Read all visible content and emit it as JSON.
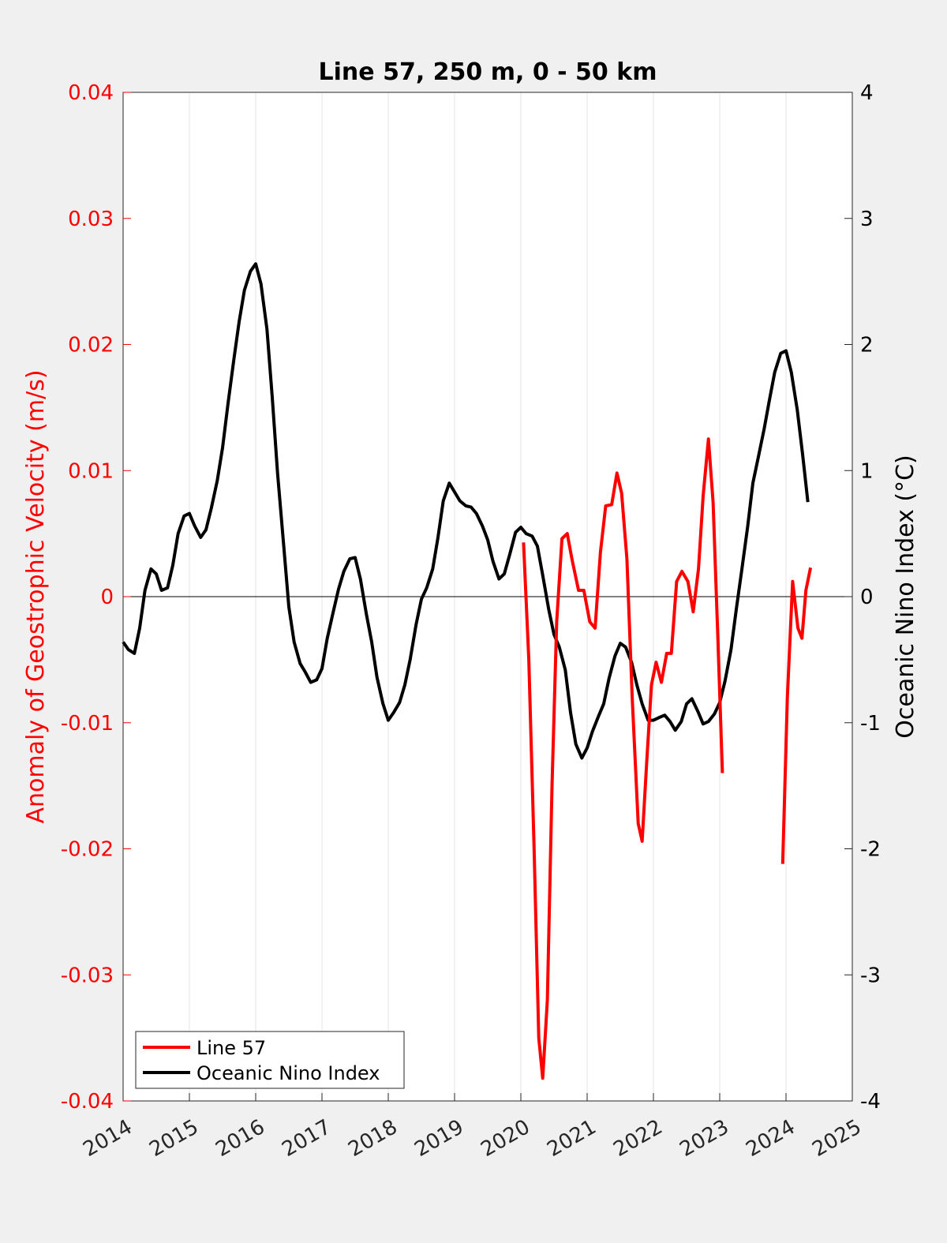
{
  "chart_data": {
    "type": "line",
    "title": "Line 57, 250 m, 0 - 50 km",
    "xlim": [
      2014,
      2025
    ],
    "x_ticks": [
      "2014",
      "2015",
      "2016",
      "2017",
      "2018",
      "2019",
      "2020",
      "2021",
      "2022",
      "2023",
      "2024",
      "2025"
    ],
    "left_axis": {
      "label": "Anomaly of Geostrophic Velocity (m/s)",
      "ylim": [
        -0.04,
        0.04
      ],
      "ticks": [
        "-0.04",
        "-0.03",
        "-0.02",
        "-0.01",
        "0",
        "0.01",
        "0.02",
        "0.03",
        "0.04"
      ],
      "color": "#ff0000"
    },
    "right_axis": {
      "label": "Oceanic Nino Index (°C)",
      "ylim": [
        -4,
        4
      ],
      "ticks": [
        "-4",
        "-3",
        "-2",
        "-1",
        "0",
        "1",
        "2",
        "3",
        "4"
      ],
      "color": "#000000"
    },
    "grid": "vertical",
    "zero_line": true,
    "legend_position": "bottom-left",
    "series": [
      {
        "name": "Line 57",
        "axis": "left",
        "color": "#ff0000",
        "segments": [
          [
            [
              2020.04,
              0.0043
            ],
            [
              2020.12,
              -0.005
            ],
            [
              2020.2,
              -0.02
            ],
            [
              2020.27,
              -0.035
            ],
            [
              2020.33,
              -0.0382
            ],
            [
              2020.4,
              -0.032
            ],
            [
              2020.47,
              -0.015
            ],
            [
              2020.54,
              -0.002
            ],
            [
              2020.62,
              0.0046
            ],
            [
              2020.7,
              0.005
            ],
            [
              2020.77,
              0.003
            ],
            [
              2020.87,
              0.0005
            ],
            [
              2020.95,
              0.0005
            ],
            [
              2021.04,
              -0.002
            ],
            [
              2021.12,
              -0.0025
            ],
            [
              2021.2,
              0.0035
            ],
            [
              2021.28,
              0.0072
            ],
            [
              2021.37,
              0.0073
            ],
            [
              2021.45,
              0.0098
            ],
            [
              2021.52,
              0.0082
            ],
            [
              2021.6,
              0.003
            ],
            [
              2021.68,
              -0.008
            ],
            [
              2021.77,
              -0.018
            ],
            [
              2021.83,
              -0.0194
            ],
            [
              2021.9,
              -0.013
            ],
            [
              2021.97,
              -0.007
            ],
            [
              2022.04,
              -0.0052
            ],
            [
              2022.12,
              -0.0068
            ],
            [
              2022.2,
              -0.0045
            ],
            [
              2022.27,
              -0.0045
            ],
            [
              2022.35,
              0.0012
            ],
            [
              2022.43,
              0.002
            ],
            [
              2022.52,
              0.0012
            ],
            [
              2022.6,
              -0.0012
            ],
            [
              2022.68,
              0.0022
            ],
            [
              2022.75,
              0.008
            ],
            [
              2022.83,
              0.0125
            ],
            [
              2022.9,
              0.0075
            ],
            [
              2022.97,
              -0.003
            ],
            [
              2023.04,
              -0.014
            ]
          ],
          [
            [
              2023.95,
              -0.0212
            ],
            [
              2024.02,
              -0.008
            ],
            [
              2024.1,
              0.0012
            ],
            [
              2024.18,
              -0.0025
            ],
            [
              2024.24,
              -0.0033
            ],
            [
              2024.3,
              0.0005
            ],
            [
              2024.37,
              0.0023
            ]
          ]
        ]
      },
      {
        "name": "Oceanic Nino Index",
        "axis": "right",
        "color": "#000000",
        "points": [
          [
            2014.0,
            -0.36
          ],
          [
            2014.08,
            -0.42
          ],
          [
            2014.17,
            -0.45
          ],
          [
            2014.25,
            -0.25
          ],
          [
            2014.33,
            0.05
          ],
          [
            2014.42,
            0.22
          ],
          [
            2014.5,
            0.18
          ],
          [
            2014.58,
            0.05
          ],
          [
            2014.67,
            0.07
          ],
          [
            2014.75,
            0.25
          ],
          [
            2014.83,
            0.5
          ],
          [
            2014.92,
            0.64
          ],
          [
            2015.0,
            0.66
          ],
          [
            2015.08,
            0.56
          ],
          [
            2015.17,
            0.47
          ],
          [
            2015.25,
            0.53
          ],
          [
            2015.33,
            0.7
          ],
          [
            2015.42,
            0.92
          ],
          [
            2015.5,
            1.18
          ],
          [
            2015.58,
            1.52
          ],
          [
            2015.67,
            1.88
          ],
          [
            2015.75,
            2.18
          ],
          [
            2015.83,
            2.43
          ],
          [
            2015.92,
            2.58
          ],
          [
            2016.0,
            2.64
          ],
          [
            2016.08,
            2.48
          ],
          [
            2016.17,
            2.12
          ],
          [
            2016.25,
            1.58
          ],
          [
            2016.33,
            0.98
          ],
          [
            2016.42,
            0.42
          ],
          [
            2016.5,
            -0.08
          ],
          [
            2016.58,
            -0.36
          ],
          [
            2016.67,
            -0.53
          ],
          [
            2016.75,
            -0.6
          ],
          [
            2016.83,
            -0.68
          ],
          [
            2016.92,
            -0.66
          ],
          [
            2017.0,
            -0.57
          ],
          [
            2017.08,
            -0.33
          ],
          [
            2017.17,
            -0.12
          ],
          [
            2017.25,
            0.06
          ],
          [
            2017.33,
            0.2
          ],
          [
            2017.42,
            0.3
          ],
          [
            2017.5,
            0.31
          ],
          [
            2017.58,
            0.14
          ],
          [
            2017.67,
            -0.14
          ],
          [
            2017.75,
            -0.36
          ],
          [
            2017.83,
            -0.64
          ],
          [
            2017.92,
            -0.85
          ],
          [
            2018.0,
            -0.98
          ],
          [
            2018.08,
            -0.92
          ],
          [
            2018.17,
            -0.84
          ],
          [
            2018.25,
            -0.7
          ],
          [
            2018.33,
            -0.5
          ],
          [
            2018.42,
            -0.22
          ],
          [
            2018.5,
            -0.02
          ],
          [
            2018.58,
            0.07
          ],
          [
            2018.67,
            0.22
          ],
          [
            2018.75,
            0.47
          ],
          [
            2018.83,
            0.76
          ],
          [
            2018.92,
            0.9
          ],
          [
            2019.0,
            0.83
          ],
          [
            2019.08,
            0.76
          ],
          [
            2019.17,
            0.72
          ],
          [
            2019.25,
            0.71
          ],
          [
            2019.33,
            0.66
          ],
          [
            2019.42,
            0.56
          ],
          [
            2019.5,
            0.45
          ],
          [
            2019.58,
            0.28
          ],
          [
            2019.67,
            0.14
          ],
          [
            2019.75,
            0.18
          ],
          [
            2019.83,
            0.33
          ],
          [
            2019.92,
            0.51
          ],
          [
            2020.0,
            0.55
          ],
          [
            2020.08,
            0.5
          ],
          [
            2020.17,
            0.48
          ],
          [
            2020.25,
            0.4
          ],
          [
            2020.33,
            0.17
          ],
          [
            2020.42,
            -0.1
          ],
          [
            2020.5,
            -0.3
          ],
          [
            2020.58,
            -0.4
          ],
          [
            2020.67,
            -0.58
          ],
          [
            2020.75,
            -0.92
          ],
          [
            2020.83,
            -1.17
          ],
          [
            2020.92,
            -1.28
          ],
          [
            2021.0,
            -1.2
          ],
          [
            2021.08,
            -1.07
          ],
          [
            2021.17,
            -0.95
          ],
          [
            2021.25,
            -0.85
          ],
          [
            2021.33,
            -0.65
          ],
          [
            2021.42,
            -0.47
          ],
          [
            2021.5,
            -0.37
          ],
          [
            2021.58,
            -0.4
          ],
          [
            2021.67,
            -0.52
          ],
          [
            2021.75,
            -0.7
          ],
          [
            2021.83,
            -0.85
          ],
          [
            2021.92,
            -0.98
          ],
          [
            2022.0,
            -0.98
          ],
          [
            2022.08,
            -0.96
          ],
          [
            2022.17,
            -0.94
          ],
          [
            2022.25,
            -0.99
          ],
          [
            2022.33,
            -1.06
          ],
          [
            2022.42,
            -0.99
          ],
          [
            2022.5,
            -0.85
          ],
          [
            2022.58,
            -0.81
          ],
          [
            2022.67,
            -0.91
          ],
          [
            2022.75,
            -1.01
          ],
          [
            2022.83,
            -0.99
          ],
          [
            2022.92,
            -0.93
          ],
          [
            2023.0,
            -0.84
          ],
          [
            2023.08,
            -0.67
          ],
          [
            2023.17,
            -0.42
          ],
          [
            2023.25,
            -0.1
          ],
          [
            2023.33,
            0.2
          ],
          [
            2023.42,
            0.55
          ],
          [
            2023.5,
            0.9
          ],
          [
            2023.58,
            1.1
          ],
          [
            2023.67,
            1.33
          ],
          [
            2023.75,
            1.56
          ],
          [
            2023.83,
            1.78
          ],
          [
            2023.92,
            1.93
          ],
          [
            2024.0,
            1.95
          ],
          [
            2024.08,
            1.78
          ],
          [
            2024.17,
            1.48
          ],
          [
            2024.25,
            1.13
          ],
          [
            2024.33,
            0.75
          ]
        ]
      }
    ]
  }
}
